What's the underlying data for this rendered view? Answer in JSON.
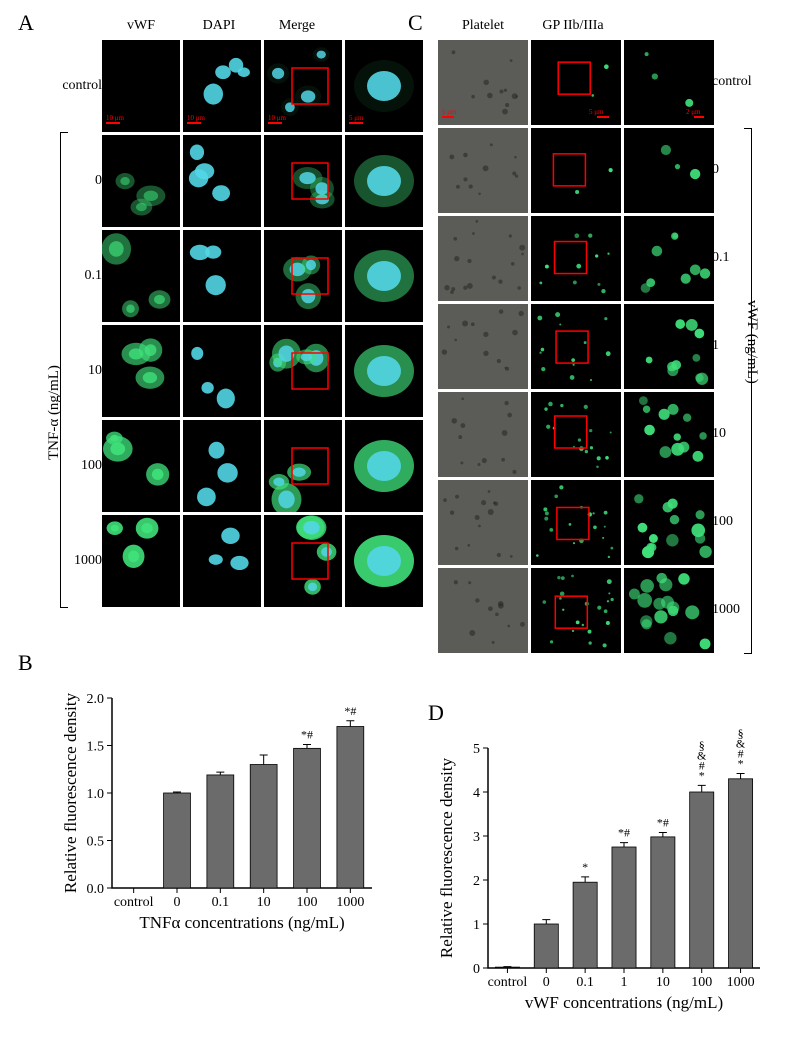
{
  "panels": {
    "A": {
      "label": "A",
      "column_headers": [
        "vWF",
        "DAPI",
        "Merge",
        ""
      ],
      "row_labels": [
        "control",
        "0",
        "0.1",
        "10",
        "100",
        "1000"
      ],
      "left_axis_text": "TNF-α (ng/mL)",
      "scalebar_labels": [
        "10 μm",
        "10 μm",
        "10 μm",
        "5 μm"
      ],
      "scalebar_color": "#ff0000",
      "green": "#3fe07a",
      "cyan": "#52d6e6",
      "black": "#000000",
      "redbox_color": "#ff0000"
    },
    "C": {
      "label": "C",
      "column_headers": [
        "Platelet",
        "GP IIb/IIIa",
        ""
      ],
      "row_labels": [
        "control",
        "0",
        "0.1",
        "1",
        "10",
        "100",
        "1000"
      ],
      "right_axis_text": "vWF (ng/mL)",
      "scalebar_labels": [
        "5 μm",
        "5 μm",
        "2 μm"
      ],
      "scalebar_color": "#ff0000",
      "grey": "#6a6a64",
      "green": "#3fe07a",
      "black": "#000000"
    }
  },
  "chartB": {
    "label": "B",
    "type": "bar",
    "categories": [
      "control",
      "0",
      "0.1",
      "10",
      "100",
      "1000"
    ],
    "values": [
      0,
      1.0,
      1.19,
      1.3,
      1.47,
      1.7
    ],
    "errors": [
      0,
      0.01,
      0.03,
      0.1,
      0.04,
      0.06
    ],
    "sig": [
      "",
      "",
      "",
      "",
      "*#",
      "*#"
    ],
    "ylim": [
      0,
      2
    ],
    "ytick_step": 0.5,
    "xtitle": "TNFα concentrations (ng/mL)",
    "ytitle": "Relative fluorescence density",
    "bar_color": "#6b6b6b",
    "bar_width": 0.62,
    "axis_color": "#000000",
    "tick_fontsize": 14,
    "title_fontsize": 17,
    "background_color": "#ffffff"
  },
  "chartD": {
    "label": "D",
    "type": "bar",
    "categories": [
      "control",
      "0",
      "0.1",
      "1",
      "10",
      "100",
      "1000"
    ],
    "values": [
      0.02,
      1.0,
      1.95,
      2.75,
      2.98,
      4.0,
      4.3
    ],
    "errors": [
      0.01,
      0.1,
      0.12,
      0.1,
      0.1,
      0.15,
      0.12
    ],
    "sig_stack": [
      [],
      [],
      [
        "*"
      ],
      [
        "*#"
      ],
      [
        "*#"
      ],
      [
        "§",
        "&",
        "#",
        "*"
      ],
      [
        "§",
        "&",
        "#",
        "*"
      ]
    ],
    "ylim": [
      0,
      5
    ],
    "ytick_step": 1,
    "xtitle": "vWF concentrations (ng/mL)",
    "ytitle": "Relative fluorescence density",
    "bar_color": "#6b6b6b",
    "bar_width": 0.62,
    "axis_color": "#000000",
    "tick_fontsize": 14,
    "title_fontsize": 17,
    "background_color": "#ffffff"
  }
}
